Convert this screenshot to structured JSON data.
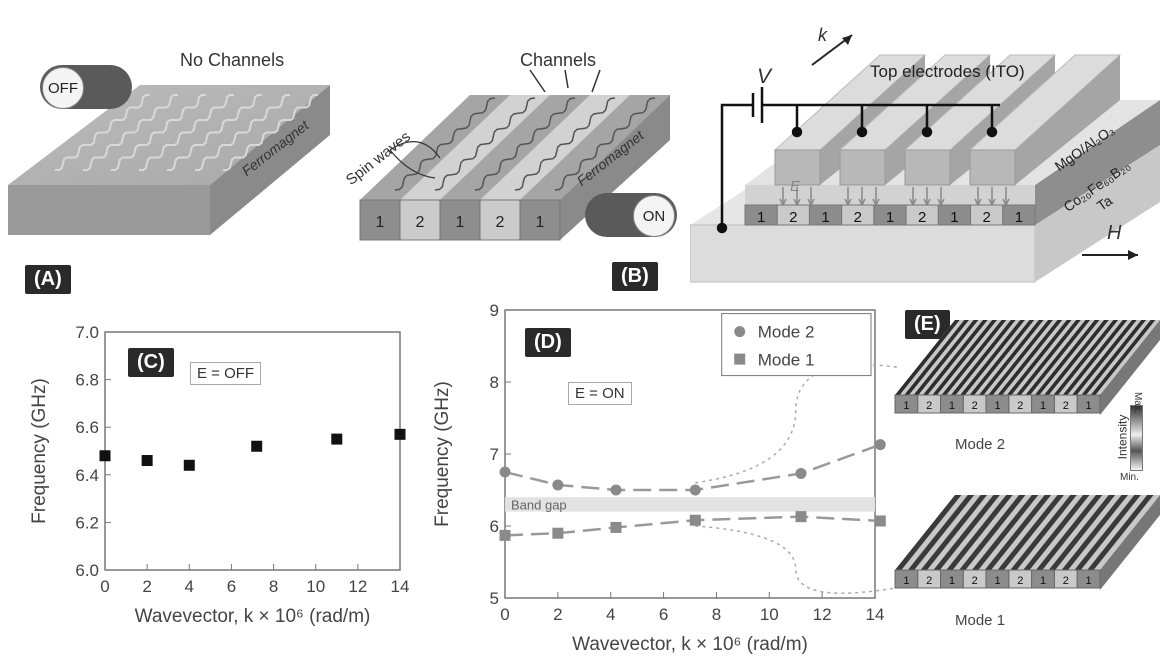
{
  "panel_a": {
    "tag": "(A)",
    "title": "No Channels",
    "toggle_label": "OFF",
    "material_label": "Ferromagnet"
  },
  "panel_b": {
    "tag": "(B)",
    "channels_label": "Channels",
    "spin_waves_label": "Spin waves",
    "material_label": "Ferromagnet",
    "toggle_label": "ON",
    "channel_numbers": [
      "1",
      "2",
      "1",
      "2",
      "1"
    ]
  },
  "device": {
    "k_label": "k",
    "v_label": "V",
    "top_electrodes_label": "Top electrodes (ITO)",
    "e_label": "E",
    "layer1_label": "MgO/Al₂O₃",
    "layer2_label": "Co₂₀Fe₆₀B₂₀",
    "layer3_label": "Ta",
    "h_label": "H",
    "channel_numbers": [
      "1",
      "2",
      "1",
      "2",
      "1",
      "2",
      "1",
      "2",
      "1"
    ]
  },
  "panel_c": {
    "tag": "(C)",
    "condition": "E = OFF",
    "chart_data": {
      "type": "scatter",
      "xlabel": "Wavevector, k × 10⁶ (rad/m)",
      "ylabel": "Frequency (GHz)",
      "xlim": [
        0,
        14
      ],
      "ylim": [
        6.0,
        7.0
      ],
      "xticks": [
        "0",
        "2",
        "4",
        "6",
        "8",
        "10",
        "12",
        "14"
      ],
      "yticks": [
        "6.0",
        "6.2",
        "6.4",
        "6.6",
        "6.8",
        "7.0"
      ],
      "series": [
        {
          "x": [
            0,
            2,
            4,
            7.2,
            11,
            14
          ],
          "y": [
            6.48,
            6.46,
            6.44,
            6.52,
            6.55,
            6.57
          ],
          "marker": "square",
          "color": "#111111"
        }
      ]
    }
  },
  "panel_d": {
    "tag": "(D)",
    "condition": "E = ON",
    "band_gap_label": "Band gap",
    "chart_data": {
      "type": "scatter",
      "xlabel": "Wavevector, k × 10⁶ (rad/m)",
      "ylabel": "Frequency (GHz)",
      "xlim": [
        0,
        14
      ],
      "ylim": [
        5,
        9
      ],
      "xticks": [
        "0",
        "2",
        "4",
        "6",
        "8",
        "10",
        "12",
        "14"
      ],
      "yticks": [
        "5",
        "6",
        "7",
        "8",
        "9"
      ],
      "band_gap": [
        6.2,
        6.4
      ],
      "legend_position": "top-right",
      "series": [
        {
          "name": "Mode 2",
          "marker": "circle",
          "color": "#8a8a8a",
          "x": [
            0,
            2,
            4.2,
            7.2,
            11.2,
            14.2
          ],
          "y": [
            6.75,
            6.57,
            6.5,
            6.5,
            6.73,
            7.13
          ]
        },
        {
          "name": "Mode 1",
          "marker": "square",
          "color": "#8a8a8a",
          "x": [
            0,
            2,
            4.2,
            7.2,
            11.2,
            14.2
          ],
          "y": [
            5.87,
            5.9,
            5.98,
            6.08,
            6.13,
            6.07
          ]
        }
      ]
    }
  },
  "panel_e": {
    "tag": "(E)",
    "mode2_label": "Mode 2",
    "mode1_label": "Mode 1",
    "intensity_label": "Intensity",
    "max_label": "Max.",
    "min_label": "Min.",
    "channel_numbers": [
      "1",
      "2",
      "1",
      "2",
      "1",
      "2",
      "1",
      "2",
      "1"
    ]
  }
}
